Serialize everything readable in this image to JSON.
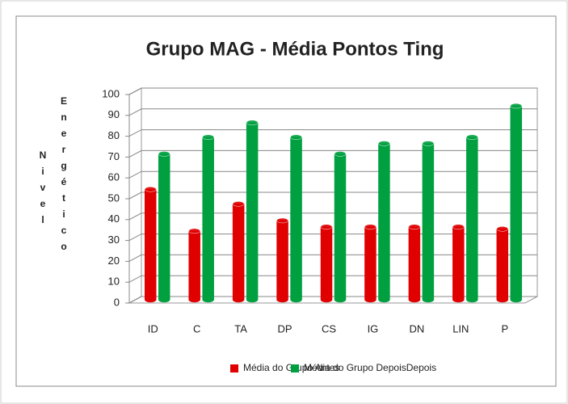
{
  "chart_data": {
    "type": "bar3d",
    "title": "Grupo MAG - Média Pontos Ting",
    "y_label": [
      "Nivel",
      "Energético"
    ],
    "categories": [
      "ID",
      "C",
      "TA",
      "DP",
      "CS",
      "IG",
      "DN",
      "LIN",
      "P"
    ],
    "series": [
      {
        "name": "Média do Grupo Antes",
        "color": "#e00000",
        "values": [
          53,
          33,
          46,
          38,
          35,
          35,
          35,
          35,
          34
        ]
      },
      {
        "name": "Média do Grupo DepoisDepois",
        "color": "#00a040",
        "values": [
          70,
          78,
          85,
          78,
          70,
          75,
          75,
          78,
          93
        ]
      }
    ],
    "ylim": [
      0,
      100
    ],
    "yticks": [
      0,
      10,
      20,
      30,
      40,
      50,
      60,
      70,
      80,
      90,
      100
    ],
    "grid": true,
    "legend": "bottom"
  }
}
